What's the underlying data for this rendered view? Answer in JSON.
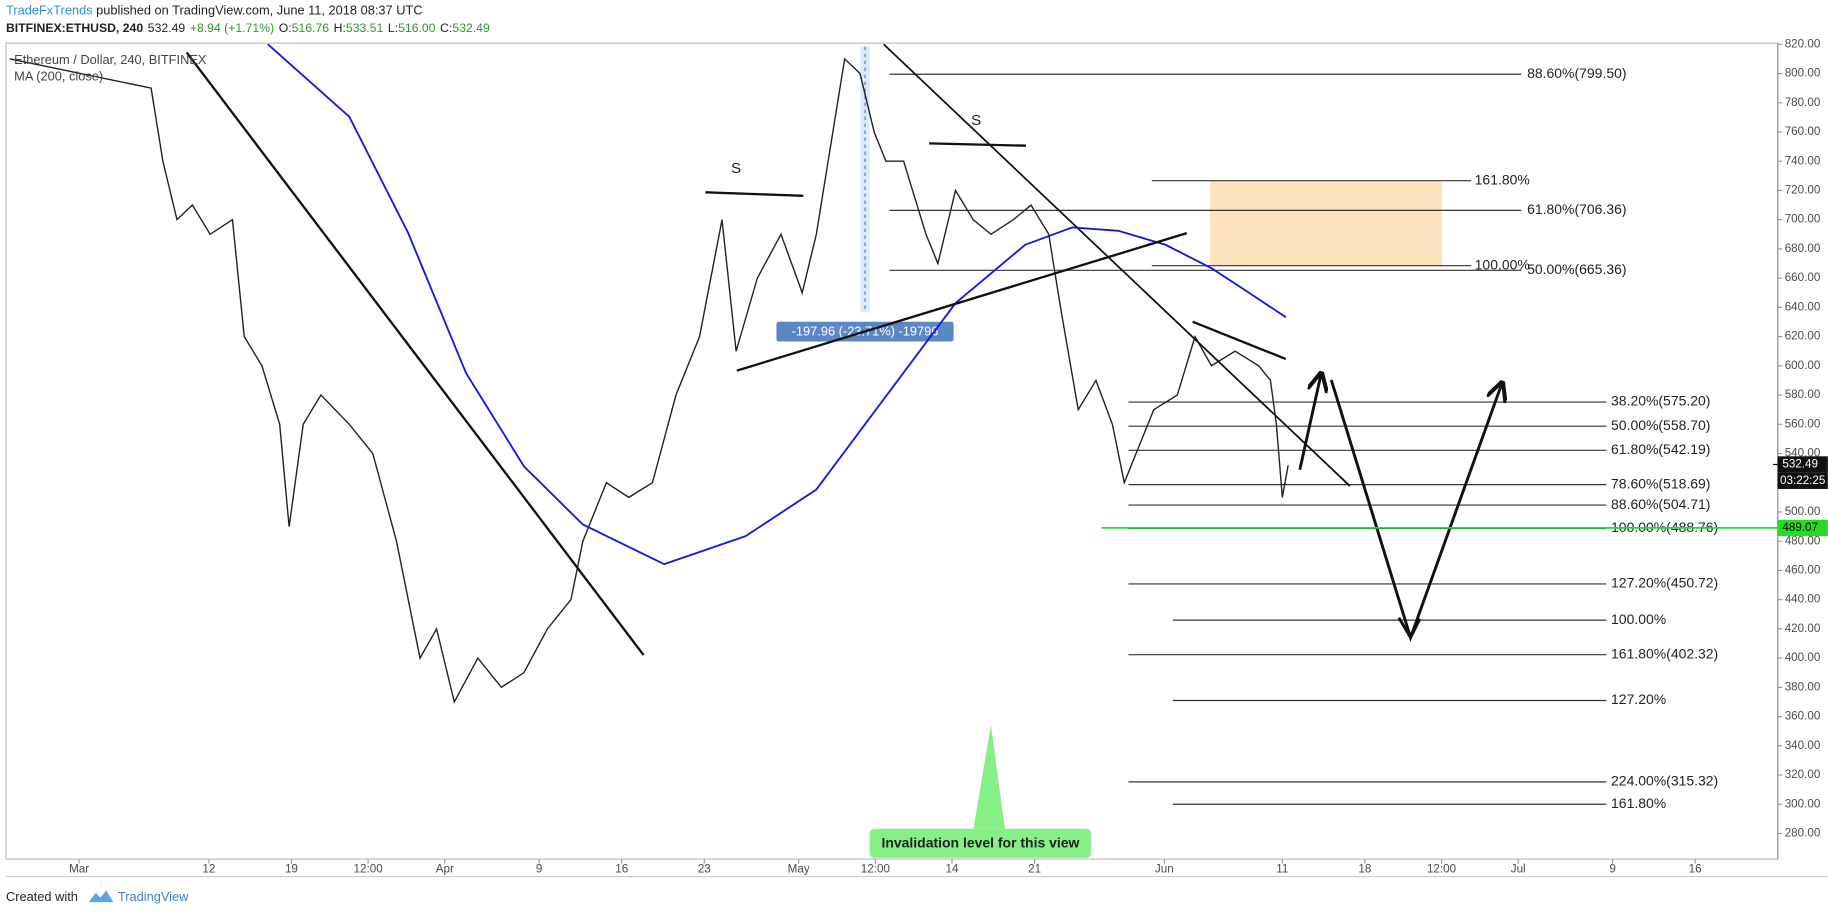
{
  "header": {
    "author": "TradeFxTrends",
    "published": "published on TradingView.com, June 11, 2018 08:37 UTC"
  },
  "symbol_bar": {
    "symbol": "BITFINEX:ETHUSD, 240",
    "last": "532.49",
    "change": "+8.94 (+1.71%)",
    "ohlc": [
      {
        "key": "O:",
        "value": "516.76"
      },
      {
        "key": "H:",
        "value": "533.51"
      },
      {
        "key": "L:",
        "value": "516.00"
      },
      {
        "key": "C:",
        "value": "532.49"
      }
    ]
  },
  "chart_data": {
    "type": "line",
    "title": "Ethereum / Dollar, 240, BITFINEX",
    "series": [
      {
        "color": "#222222",
        "x": [
          -5.9,
          6.1,
          7.1,
          8.3,
          9.6,
          11.1,
          13.0,
          14.0,
          15.5,
          17.0,
          17.8,
          19.0,
          20.5,
          22.9,
          24.9,
          26.9,
          28.9,
          30.3,
          31.8,
          33.8,
          35.8,
          37.7,
          39.7,
          41.7,
          42.7,
          44.7,
          46.6,
          48.6,
          50.6,
          52.6,
          54.5,
          55.7,
          57.5,
          59.5,
          61.3,
          62.5,
          63.9,
          64.9,
          66.2,
          67.4,
          68.4,
          69.9,
          71.8,
          72.8,
          74.3,
          75.8,
          77.3,
          79.2,
          80.7,
          82.2,
          83.2,
          84.7,
          86.2,
          87.6,
          88.6,
          89.6,
          91.1,
          93.1,
          94.6,
          96.0,
          98.0,
          100.0,
          101.0,
          101.5,
          102.0,
          102.5
        ],
        "values": [
          810,
          790,
          740,
          700,
          710,
          690,
          700,
          620,
          600,
          560,
          490,
          560,
          580,
          560,
          540,
          480,
          400,
          420,
          370,
          400,
          380,
          390,
          420,
          440,
          480,
          520,
          510,
          520,
          580,
          620,
          700,
          610,
          660,
          690,
          650,
          690,
          760,
          810,
          800,
          760,
          740,
          740,
          690,
          670,
          720,
          700,
          690,
          700,
          710,
          690,
          640,
          570,
          590,
          560,
          520,
          540,
          570,
          580,
          620,
          600,
          610,
          600,
          590,
          560,
          510,
          532
        ]
      },
      {
        "name": "MA (200, close)",
        "color": "#1a1ad6",
        "x": [
          16.0,
          22.9,
          27.9,
          32.8,
          37.7,
          42.7,
          49.6,
          56.5,
          62.5,
          68.4,
          74.3,
          80.2,
          84.2,
          88.1,
          92.1,
          96.0,
          99.0,
          102.3
        ],
        "values": [
          820,
          770.5,
          690.8,
          595,
          531.3,
          491.4,
          464.3,
          483.4,
          515.3,
          579.1,
          642.9,
          682.8,
          694.7,
          692.4,
          682.8,
          666.8,
          650.9,
          633.3
        ]
      }
    ],
    "xlim": [
      -6.2,
      144.0
    ],
    "xticks": [
      {
        "value": 0,
        "label": "Mar"
      },
      {
        "value": 11,
        "label": "12"
      },
      {
        "value": 18,
        "label": "19"
      },
      {
        "value": 24.5,
        "label": "12:00"
      },
      {
        "value": 31,
        "label": "Apr"
      },
      {
        "value": 39,
        "label": "9"
      },
      {
        "value": 46,
        "label": "16"
      },
      {
        "value": 53,
        "label": "23"
      },
      {
        "value": 61,
        "label": "May"
      },
      {
        "value": 67.5,
        "label": "12:00"
      },
      {
        "value": 74,
        "label": "14"
      },
      {
        "value": 81,
        "label": "21"
      },
      {
        "value": 92,
        "label": "Jun"
      },
      {
        "value": 102,
        "label": "11"
      },
      {
        "value": 109,
        "label": "18"
      },
      {
        "value": 115.5,
        "label": "12:00"
      },
      {
        "value": 122,
        "label": "Jul"
      },
      {
        "value": 130,
        "label": "9"
      },
      {
        "value": 137,
        "label": "16"
      }
    ],
    "ylim": [
      262.5,
      820.8
    ],
    "yticks": [
      {
        "value": 280,
        "label": "280.00"
      },
      {
        "value": 300,
        "label": "300.00"
      },
      {
        "value": 320,
        "label": "320.00"
      },
      {
        "value": 340,
        "label": "340.00"
      },
      {
        "value": 360,
        "label": "360.00"
      },
      {
        "value": 380,
        "label": "380.00"
      },
      {
        "value": 400,
        "label": "400.00"
      },
      {
        "value": 420,
        "label": "420.00"
      },
      {
        "value": 440,
        "label": "440.00"
      },
      {
        "value": 460,
        "label": "460.00"
      },
      {
        "value": 480,
        "label": "480.00"
      },
      {
        "value": 500,
        "label": "500.00"
      },
      {
        "value": 540,
        "label": "540.00"
      },
      {
        "value": 560,
        "label": "560.00"
      },
      {
        "value": 580,
        "label": "580.00"
      },
      {
        "value": 600,
        "label": "600.00"
      },
      {
        "value": 620,
        "label": "620.00"
      },
      {
        "value": 640,
        "label": "640.00"
      },
      {
        "value": 660,
        "label": "660.00"
      },
      {
        "value": 680,
        "label": "680.00"
      },
      {
        "value": 700,
        "label": "700.00"
      },
      {
        "value": 720,
        "label": "720.00"
      },
      {
        "value": 740,
        "label": "740.00"
      },
      {
        "value": 760,
        "label": "760.00"
      },
      {
        "value": 780,
        "label": "780.00"
      },
      {
        "value": 800,
        "label": "800.00"
      },
      {
        "value": 820,
        "label": "820.00"
      }
    ],
    "fib_levels": [
      {
        "label": "88.60%(799.50)",
        "value": 799.5
      },
      {
        "label": "161.80%",
        "value": 726.7
      },
      {
        "label": "61.80%(706.36)",
        "value": 706.36
      },
      {
        "label": "100.00%",
        "value": 668.5
      },
      {
        "label": "50.00%(665.36)",
        "value": 665.36
      },
      {
        "label": "38.20%(575.20)",
        "value": 575.2
      },
      {
        "label": "50.00%(558.70)",
        "value": 558.7
      },
      {
        "label": "61.80%(542.19)",
        "value": 542.19
      },
      {
        "label": "78.60%(518.69)",
        "value": 518.69
      },
      {
        "label": "88.60%(504.71)",
        "value": 504.71
      },
      {
        "label": "100.00%(488.76)",
        "value": 488.76
      },
      {
        "label": "127.20%(450.72)",
        "value": 450.72
      },
      {
        "label": "100.00%",
        "value": 426
      },
      {
        "label": "161.80%(402.32)",
        "value": 402.32
      },
      {
        "label": "127.20%",
        "value": 371
      },
      {
        "label": "224.00%(315.32)",
        "value": 315.32
      },
      {
        "label": "161.80%",
        "value": 300
      }
    ],
    "swing_labels": [
      "S",
      "S"
    ],
    "measure_label": "-197.96 (-23.71%) -19796",
    "invalidation_label": "Invalidation level for this view",
    "last_price": 532.49,
    "countdown": "03:22:25",
    "target_line": {
      "value": 489.07,
      "color": "#22dd22"
    }
  },
  "footer": {
    "created_with": "Created with",
    "brand": "TradingView"
  }
}
